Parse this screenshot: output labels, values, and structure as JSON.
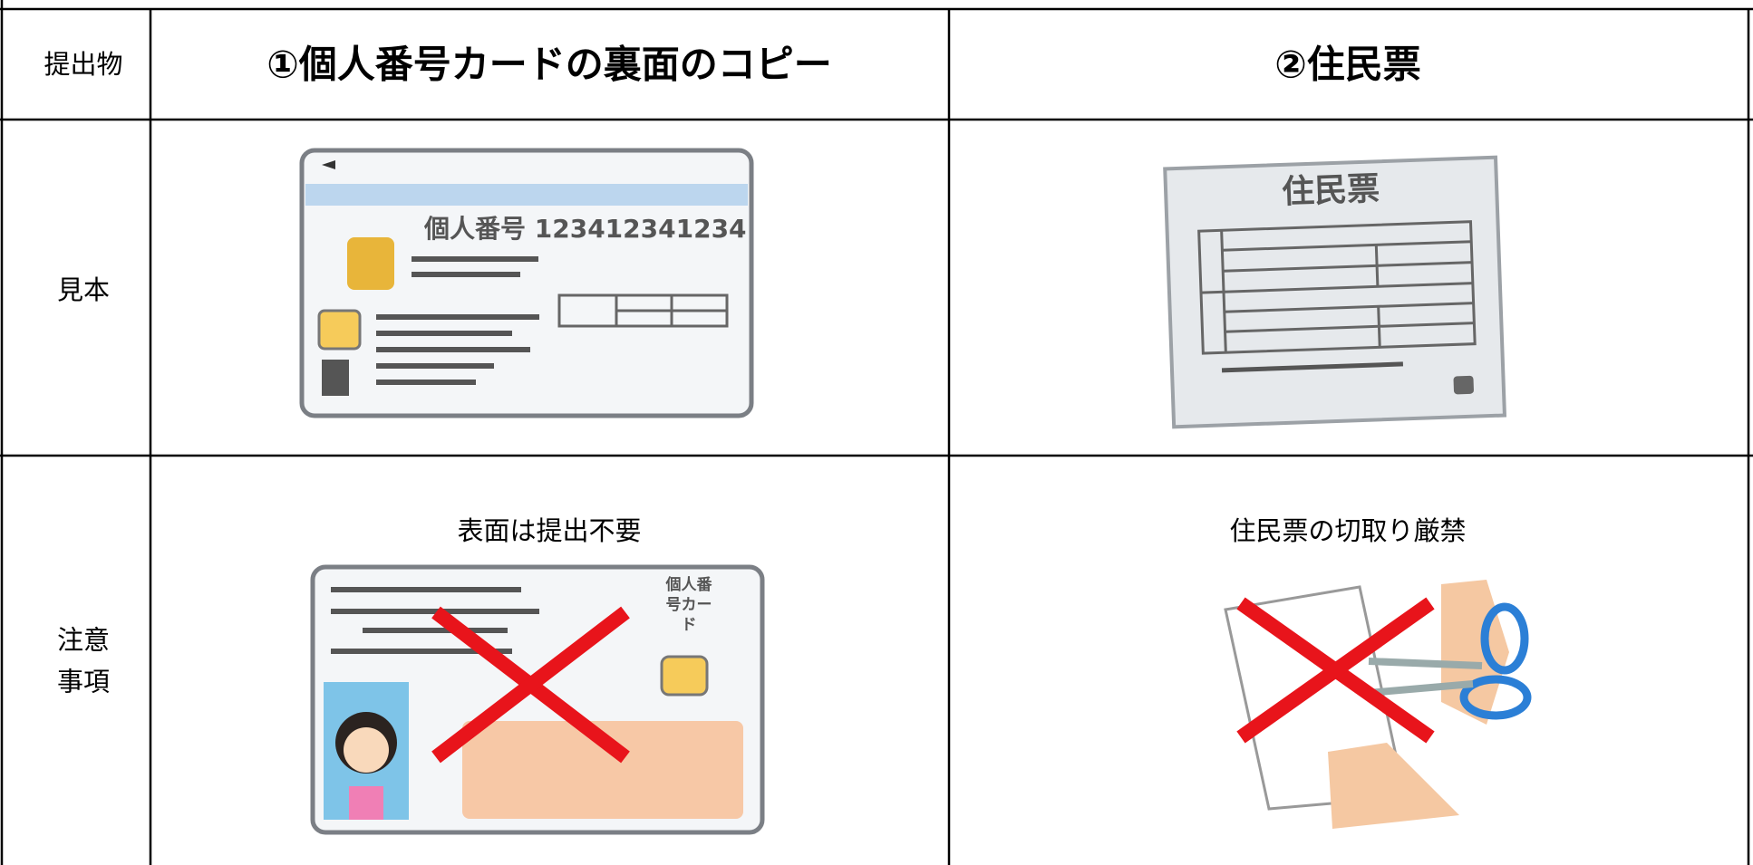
{
  "table": {
    "header": [
      "提出物",
      "①個人番号カードの裏面のコピー",
      "②住民票"
    ],
    "rows": [
      [
        "見本"
      ],
      [
        "注意事項",
        "表面は提出不要",
        "住民票の切取り厳禁"
      ]
    ]
  },
  "illustrations": {
    "card_back_number": "個人番号 123412341234",
    "card_front_title": "個人番号カード",
    "jumin_title": "住民票"
  }
}
